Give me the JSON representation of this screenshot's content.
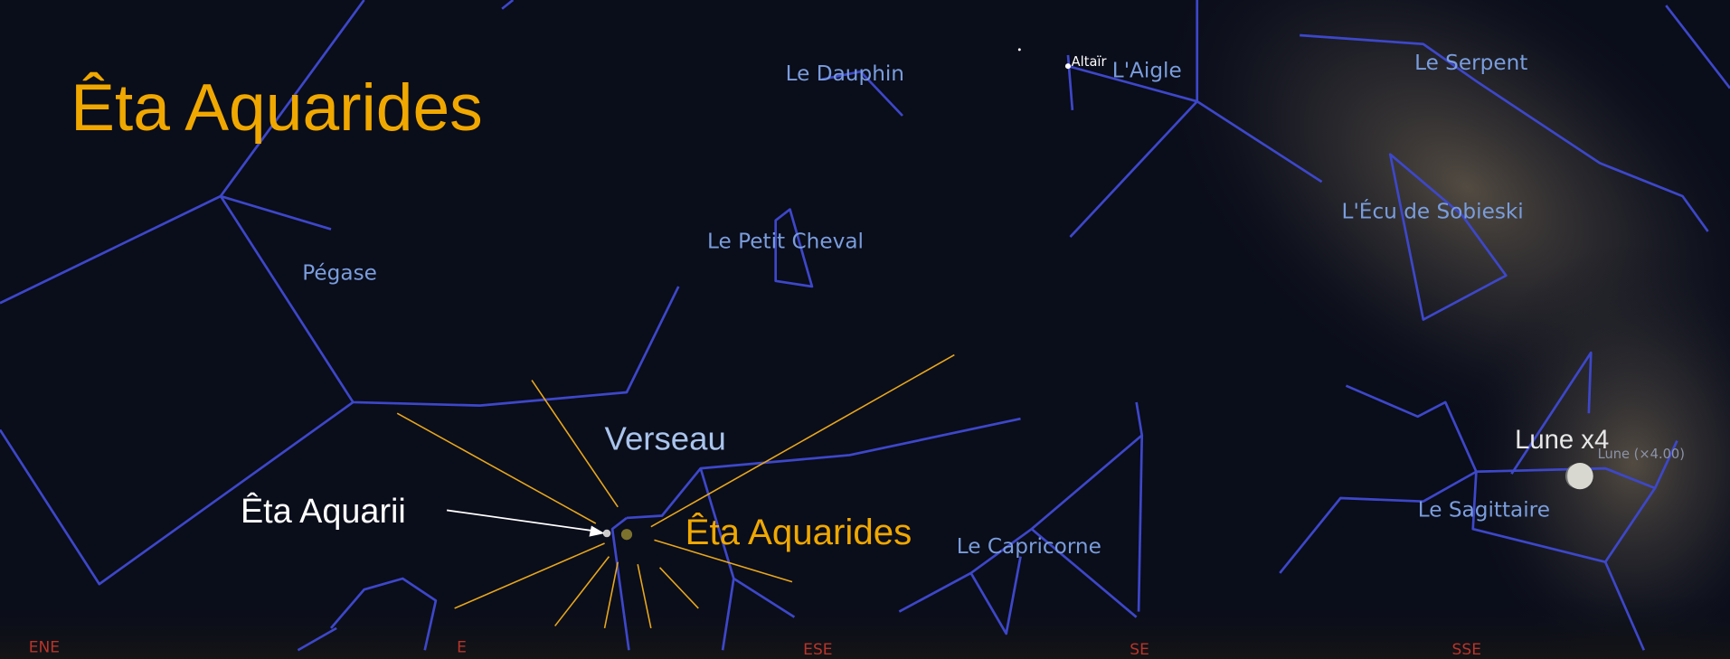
{
  "title": "Êta Aquarides",
  "constellations": [
    "Le Dauphin",
    "L'Aigle",
    "Le Serpent",
    "Pégase",
    "Le Petit Cheval",
    "L'Écu de Sobieski",
    "Verseau",
    "Le Capricorne",
    "Le Sagittaire"
  ],
  "stars": [
    "Altaïr"
  ],
  "annotations": {
    "star": "Êta Aquarii",
    "radiant": "Êta Aquarides",
    "moon": "Lune x4",
    "moon_label": "Lune (×4.00)"
  },
  "compass": [
    "ENE",
    "E",
    "ESE",
    "SE",
    "SSE"
  ]
}
